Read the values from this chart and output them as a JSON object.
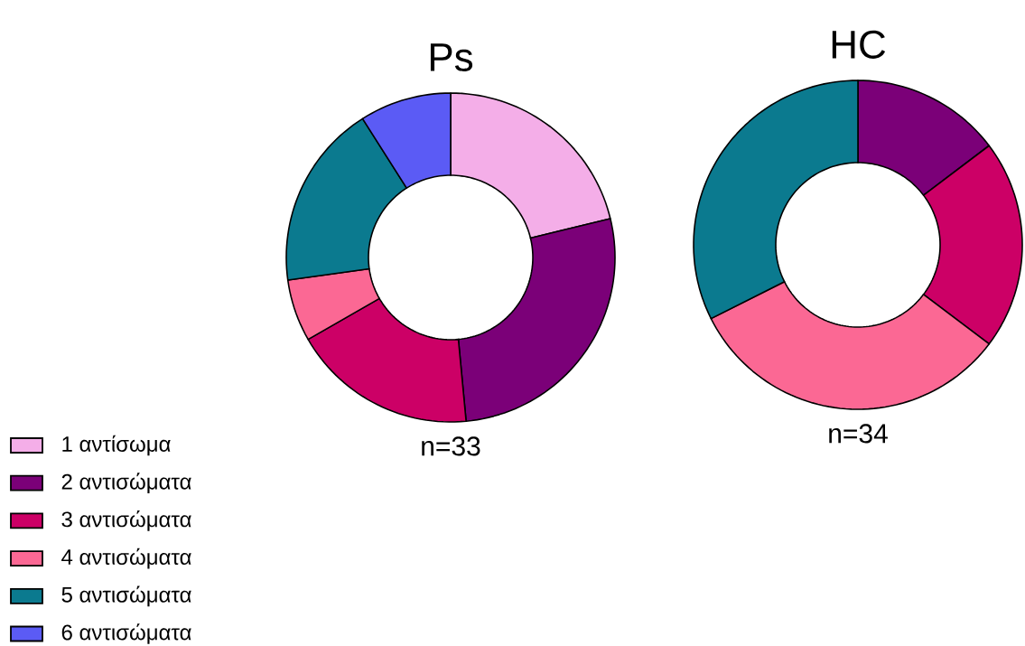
{
  "chart_data": [
    {
      "type": "donut",
      "title": "Ps",
      "categories": [
        "1 αντίσωμα",
        "2 αντισώματα",
        "3 αντισώματα",
        "4 αντισώματα",
        "5 αντισώματα",
        "6 αντισώματα"
      ],
      "values": [
        21.2,
        27.3,
        18.2,
        6.1,
        18.2,
        9.0
      ],
      "colors": [
        "#f4aee8",
        "#7b0078",
        "#cc0066",
        "#fb6894",
        "#0b7a8f",
        "#5b5bf5"
      ],
      "legend": "bottom left",
      "annotations": [
        "n=33"
      ]
    },
    {
      "type": "donut",
      "title": "HC",
      "categories": [
        null,
        null,
        null,
        null
      ],
      "values": [
        14.7,
        20.6,
        32.3,
        32.4
      ],
      "colors": [
        "#7b0078",
        "#cc0066",
        "#fb6894",
        "#0b7a8f"
      ],
      "annotations": [
        "n=34"
      ]
    }
  ]
}
